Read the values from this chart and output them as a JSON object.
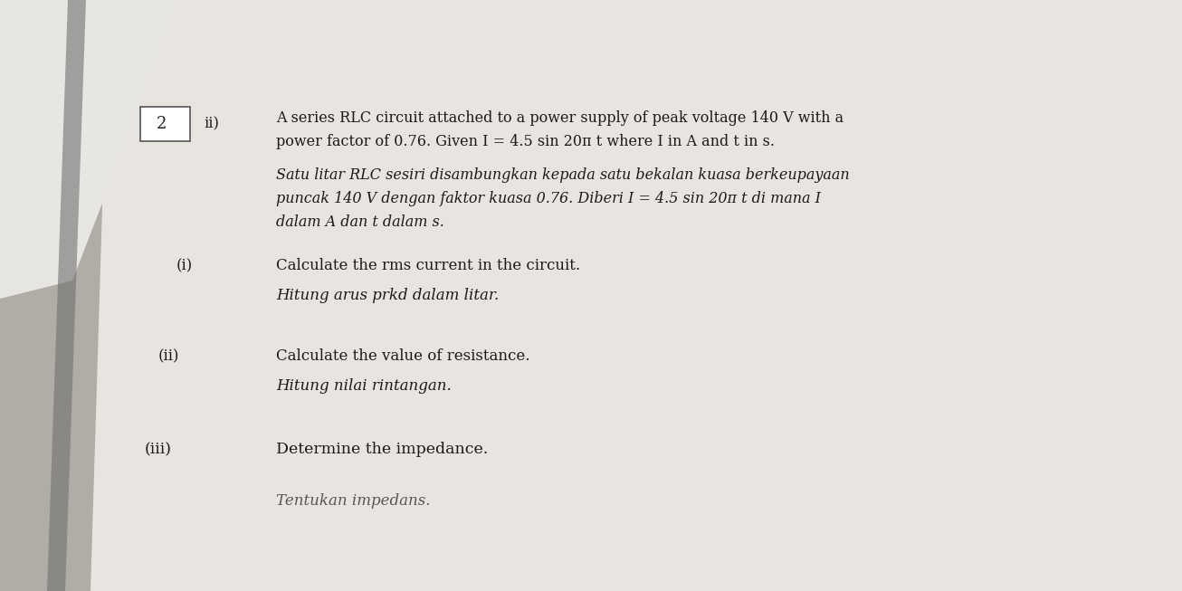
{
  "bg_color": "#c8c4be",
  "page_color": "#d8d5d0",
  "page_color_right": "#e8e5e0",
  "shadow_color": "#888480",
  "text_color": "#1a1a1a",
  "box_label": "2",
  "part_label": "ii)",
  "line1_en": "A series RLC circuit attached to a power supply of peak voltage 140 V with a",
  "line2_en": "power factor of 0.76. Given I = 4.5 sin 20π t where I in A and t in s.",
  "line1_my": "Satu litar RLC sesiri disambungkan kepada satu bekalan kuasa berkeupayaan",
  "line2_my": "puncak 140 V dengan faktor kuasa 0.76. Diberi I = 4.5 sin 20π t di mana I",
  "line3_my": "dalam A dan t dalam s.",
  "part_i_label": "(i)",
  "part_i_en": "Calculate the rms current in the circuit.",
  "part_i_my": "Hitung arus prkd dalam litar.",
  "part_ii_label": "(ii)",
  "part_ii_en": "Calculate the value of resistance.",
  "part_ii_my": "Hitung nilai rintangan.",
  "part_iii_label": "(iii)",
  "part_iii_en": "Determine the impedance.",
  "part_iii_my": "Tentukan impedans."
}
